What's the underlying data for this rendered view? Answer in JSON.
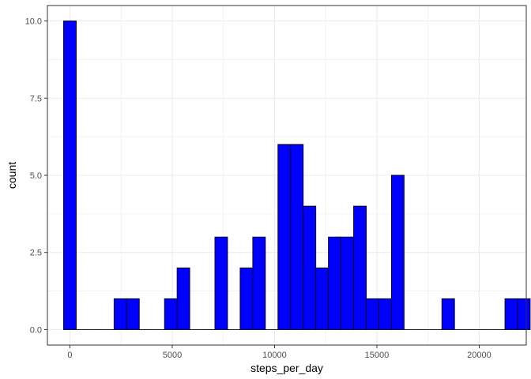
{
  "chart_data": {
    "type": "bar",
    "subtype": "histogram",
    "xlabel": "steps_per_day",
    "ylabel": "count",
    "xlim": [
      -1100,
      22300
    ],
    "ylim": [
      -0.5,
      10.5
    ],
    "x_ticks": [
      0,
      5000,
      10000,
      15000,
      20000
    ],
    "x_tick_labels": [
      "0",
      "5000",
      "10000",
      "15000",
      "20000"
    ],
    "y_ticks": [
      0,
      2.5,
      5,
      7.5,
      10
    ],
    "y_tick_labels": [
      "0.0",
      "2.5",
      "5.0",
      "7.5",
      "10.0"
    ],
    "grid": true,
    "bin_width": 616.2,
    "bins": [
      {
        "x": 0,
        "count": 10
      },
      {
        "x": 616,
        "count": 0
      },
      {
        "x": 1232,
        "count": 0
      },
      {
        "x": 1849,
        "count": 0
      },
      {
        "x": 2465,
        "count": 1
      },
      {
        "x": 3081,
        "count": 1
      },
      {
        "x": 3697,
        "count": 0
      },
      {
        "x": 4313,
        "count": 0
      },
      {
        "x": 4930,
        "count": 1
      },
      {
        "x": 5546,
        "count": 2
      },
      {
        "x": 6162,
        "count": 0
      },
      {
        "x": 6778,
        "count": 0
      },
      {
        "x": 7394,
        "count": 3
      },
      {
        "x": 8011,
        "count": 0
      },
      {
        "x": 8627,
        "count": 2
      },
      {
        "x": 9243,
        "count": 3
      },
      {
        "x": 9859,
        "count": 0
      },
      {
        "x": 10475,
        "count": 6
      },
      {
        "x": 11092,
        "count": 6
      },
      {
        "x": 11708,
        "count": 4
      },
      {
        "x": 12324,
        "count": 2
      },
      {
        "x": 12940,
        "count": 3
      },
      {
        "x": 13556,
        "count": 3
      },
      {
        "x": 14173,
        "count": 4
      },
      {
        "x": 14789,
        "count": 1
      },
      {
        "x": 15405,
        "count": 1
      },
      {
        "x": 16021,
        "count": 5
      },
      {
        "x": 16637,
        "count": 0
      },
      {
        "x": 17254,
        "count": 0
      },
      {
        "x": 17870,
        "count": 0
      },
      {
        "x": 18486,
        "count": 1
      },
      {
        "x": 19102,
        "count": 0
      },
      {
        "x": 19718,
        "count": 0
      },
      {
        "x": 20335,
        "count": 0
      },
      {
        "x": 20951,
        "count": 0
      },
      {
        "x": 21567,
        "count": 1
      },
      {
        "x": 22183,
        "count": 1
      }
    ],
    "colors": {
      "bar_fill": "#0000ff",
      "bar_stroke": "#000000",
      "grid": "#ebebeb",
      "panel_border": "#333333",
      "tick_text": "#4d4d4d",
      "title_text": "#000000"
    }
  }
}
